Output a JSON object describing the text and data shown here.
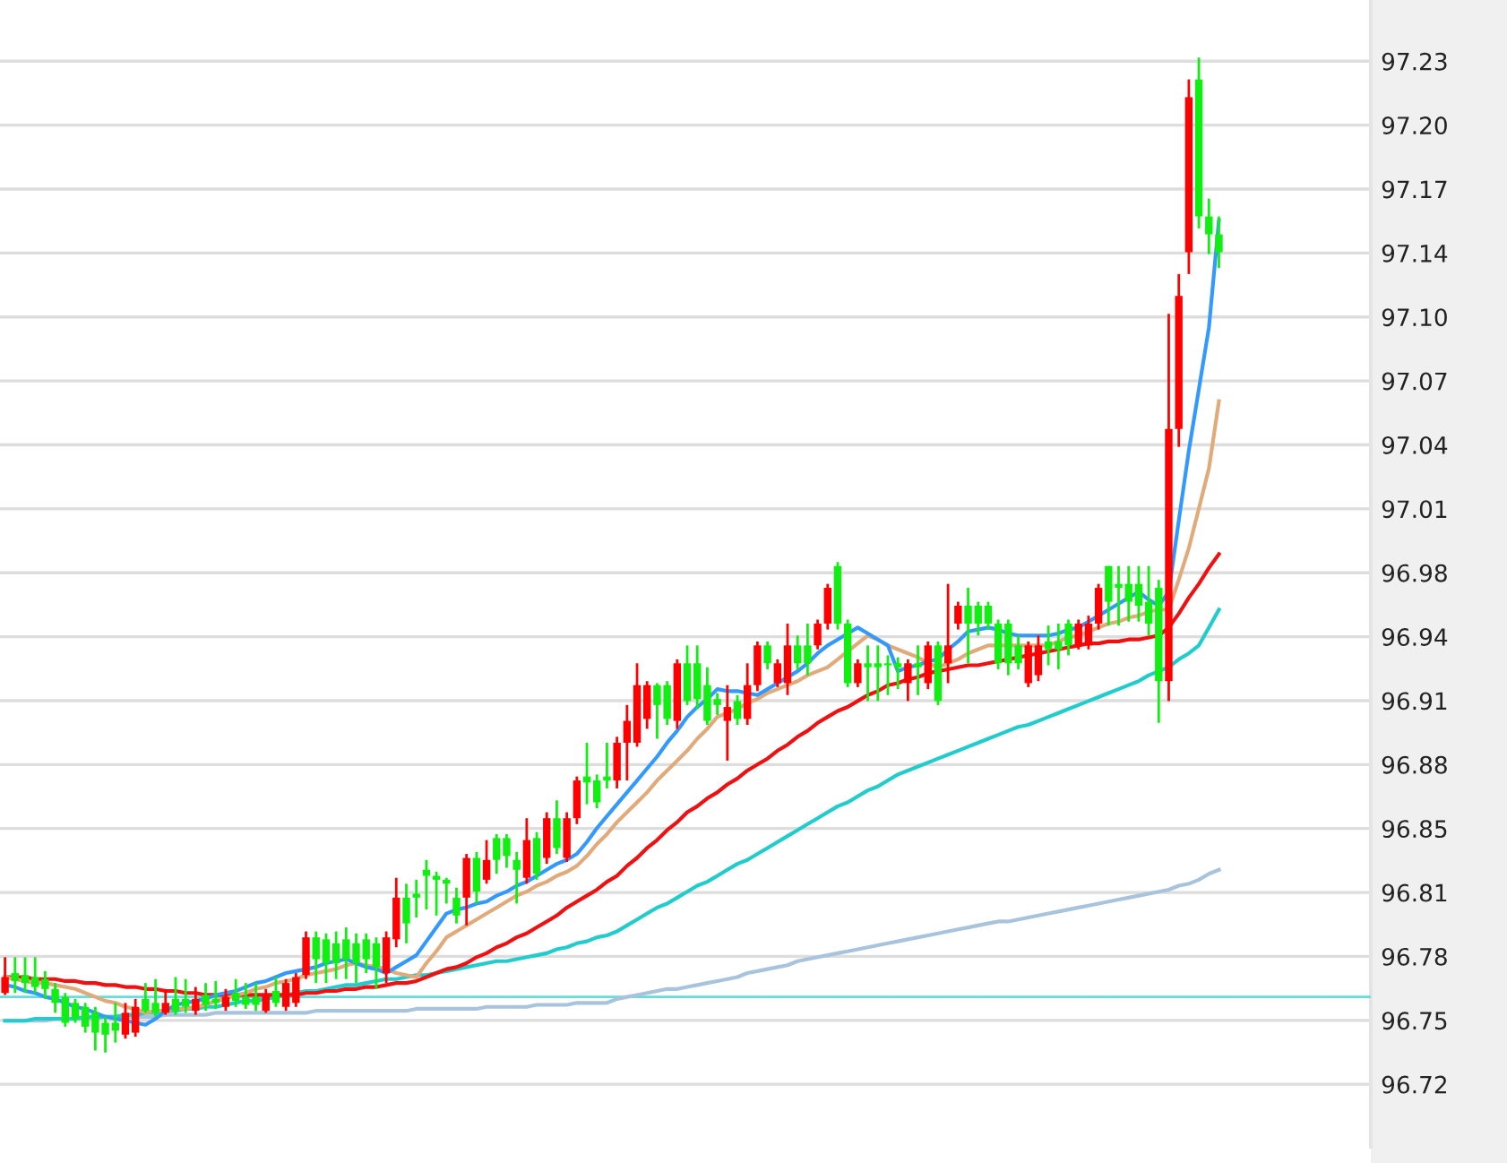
{
  "chart_data": {
    "type": "candlestick",
    "categories": [
      null,
      null,
      null,
      null,
      null,
      null,
      null,
      null,
      null,
      null,
      null,
      null,
      null,
      null,
      null,
      null,
      null,
      null,
      null,
      null,
      null,
      null,
      null,
      null,
      null,
      null,
      null,
      null,
      null,
      null,
      null,
      null,
      null,
      null,
      null,
      null,
      null,
      null,
      null,
      null,
      null,
      null,
      null,
      null,
      null,
      null,
      null,
      null,
      null,
      null,
      null,
      null,
      null,
      null,
      null,
      null,
      null,
      null,
      null,
      null,
      null,
      null,
      null,
      null,
      null,
      null,
      null,
      null,
      null,
      null,
      null,
      null,
      null,
      null,
      null,
      null,
      null,
      null,
      null,
      null,
      null,
      null,
      null,
      null,
      null,
      null,
      null,
      null,
      null,
      null,
      null,
      null,
      null,
      null,
      null,
      null,
      null,
      null,
      null,
      null,
      null,
      null,
      null,
      null,
      null,
      null,
      null,
      null,
      null,
      null,
      null,
      null,
      null,
      null,
      null,
      null,
      null,
      null,
      null,
      null,
      null,
      null
    ],
    "ylim": [
      96.6865,
      97.264
    ],
    "yticks": [
      {
        "value": 96.718,
        "label": "96.72"
      },
      {
        "value": 96.7502,
        "label": "96.75"
      },
      {
        "value": 96.7824,
        "label": "96.78"
      },
      {
        "value": 96.8146,
        "label": "96.81"
      },
      {
        "value": 96.8468,
        "label": "96.85"
      },
      {
        "value": 96.879,
        "label": "96.88"
      },
      {
        "value": 96.9112,
        "label": "96.91"
      },
      {
        "value": 96.9434,
        "label": "96.94"
      },
      {
        "value": 96.9756,
        "label": "96.98"
      },
      {
        "value": 97.0078,
        "label": "97.01"
      },
      {
        "value": 97.04,
        "label": "97.04"
      },
      {
        "value": 97.0722,
        "label": "97.07"
      },
      {
        "value": 97.1044,
        "label": "97.10"
      },
      {
        "value": 97.1366,
        "label": "97.14"
      },
      {
        "value": 97.1688,
        "label": "97.17"
      },
      {
        "value": 97.201,
        "label": "97.20"
      },
      {
        "value": 97.2332,
        "label": "97.23"
      }
    ],
    "grid": "y",
    "tick_labels": "y",
    "ref_lines": [
      {
        "axis": "y",
        "value": 96.762,
        "color": "#66dddd"
      }
    ],
    "colors": [
      "#ff0000",
      "#11ee11",
      "#11ee11",
      "#11ee11",
      "#11ee11",
      "#11ee11",
      "#11ee11",
      "#11ee11",
      "#11ee11",
      "#11ee11",
      "#11ee11",
      "#11ee11",
      "#ff0000",
      "#ff0000",
      "#11ee11",
      "#11ee11",
      "#ff0000",
      "#11ee11",
      "#11ee11",
      "#ff0000",
      "#11ee11",
      "#11ee11",
      "#ff0000",
      "#11ee11",
      "#11ee11",
      "#11ee11",
      "#ff0000",
      "#11ee11",
      "#ff0000",
      "#ff0000",
      "#ff0000",
      "#11ee11",
      "#11ee11",
      "#11ee11",
      "#11ee11",
      "#11ee11",
      "#11ee11",
      "#11ee11",
      "#ff0000",
      "#ff0000",
      "#11ee11",
      "#11ee11",
      "#11ee11",
      "#11ee11",
      "#11ee11",
      "#11ee11",
      "#ff0000",
      "#11ee11",
      "#ff0000",
      "#11ee11",
      "#11ee11",
      "#11ee11",
      "#ff0000",
      "#11ee11",
      "#ff0000",
      "#11ee11",
      "#ff0000",
      "#ff0000",
      "#11ee11",
      "#11ee11",
      "#11ee11",
      "#ff0000",
      "#ff0000",
      "#ff0000",
      "#ff0000",
      "#11ee11",
      "#11ee11",
      "#ff0000",
      "#11ee11",
      "#11ee11",
      "#11ee11",
      "#11ee11",
      "#ff0000",
      "#11ee11",
      "#ff0000",
      "#ff0000",
      "#11ee11",
      "#ff0000",
      "#ff0000",
      "#11ee11",
      "#11ee11",
      "#ff0000",
      "#ff0000",
      "#11ee11",
      "#11ee11",
      "#ff0000",
      "#11ee11",
      "#11ee11",
      "#11ee11",
      "#11ee11",
      "#ff0000",
      "#11ee11",
      "#ff0000",
      "#11ee11",
      "#ff0000",
      "#ff0000",
      "#11ee11",
      "#11ee11",
      "#11ee11",
      "#11ee11",
      "#11ee11",
      "#11ee11",
      "#ff0000",
      "#ff0000",
      "#11ee11",
      "#11ee11",
      "#11ee11",
      "#ff0000",
      "#ff0000",
      "#ff0000",
      "#11ee11",
      "#11ee11",
      "#11ee11",
      "#11ee11",
      "#11ee11",
      "#11ee11",
      "#ff0000",
      "#ff0000",
      "#ff0000",
      "#11ee11",
      "#11ee11",
      "#11ee11"
    ],
    "ohlc": [
      [
        96.764,
        96.782,
        96.763,
        96.772
      ],
      [
        96.774,
        96.782,
        96.764,
        96.77
      ],
      [
        96.773,
        96.782,
        96.764,
        96.769
      ],
      [
        96.772,
        96.782,
        96.764,
        96.767
      ],
      [
        96.771,
        96.775,
        96.761,
        96.766
      ],
      [
        96.766,
        96.769,
        96.754,
        96.759
      ],
      [
        96.762,
        96.764,
        96.747,
        96.749
      ],
      [
        96.759,
        96.761,
        96.749,
        96.751
      ],
      [
        96.757,
        96.759,
        96.744,
        96.747
      ],
      [
        96.754,
        96.757,
        96.735,
        96.744
      ],
      [
        96.749,
        96.752,
        96.734,
        96.743
      ],
      [
        96.749,
        96.759,
        96.739,
        96.745
      ],
      [
        96.743,
        96.759,
        96.741,
        96.754
      ],
      [
        96.744,
        96.761,
        96.742,
        96.757
      ],
      [
        96.761,
        96.769,
        96.754,
        96.755
      ],
      [
        96.759,
        96.771,
        96.752,
        96.754
      ],
      [
        96.754,
        96.766,
        96.753,
        96.759
      ],
      [
        96.761,
        96.772,
        96.753,
        96.755
      ],
      [
        96.761,
        96.771,
        96.754,
        96.757
      ],
      [
        96.755,
        96.767,
        96.753,
        96.761
      ],
      [
        96.763,
        96.769,
        96.755,
        96.758
      ],
      [
        96.761,
        96.77,
        96.756,
        96.759
      ],
      [
        96.757,
        96.766,
        96.755,
        96.762
      ],
      [
        96.764,
        96.771,
        96.757,
        96.76
      ],
      [
        96.762,
        96.769,
        96.756,
        96.758
      ],
      [
        96.762,
        96.769,
        96.755,
        96.758
      ],
      [
        96.755,
        96.766,
        96.754,
        96.763
      ],
      [
        96.765,
        96.772,
        96.757,
        96.759
      ],
      [
        96.757,
        96.771,
        96.755,
        96.769
      ],
      [
        96.759,
        96.774,
        96.757,
        96.772
      ],
      [
        96.773,
        96.795,
        96.771,
        96.792
      ],
      [
        96.792,
        96.795,
        96.769,
        96.781
      ],
      [
        96.791,
        96.794,
        96.769,
        96.779
      ],
      [
        96.789,
        96.795,
        96.771,
        96.779
      ],
      [
        96.791,
        96.797,
        96.771,
        96.781
      ],
      [
        96.789,
        96.794,
        96.769,
        96.779
      ],
      [
        96.791,
        96.794,
        96.774,
        96.781
      ],
      [
        96.789,
        96.792,
        96.766,
        96.777
      ],
      [
        96.774,
        96.795,
        96.769,
        96.792
      ],
      [
        96.791,
        96.822,
        96.787,
        96.812
      ],
      [
        96.812,
        96.819,
        96.789,
        96.799
      ],
      [
        96.814,
        96.821,
        96.802,
        96.812
      ],
      [
        96.826,
        96.831,
        96.806,
        96.823
      ],
      [
        96.823,
        96.825,
        96.803,
        96.821
      ],
      [
        96.821,
        96.822,
        96.809,
        96.819
      ],
      [
        96.812,
        96.817,
        96.799,
        96.803
      ],
      [
        96.812,
        96.834,
        96.798,
        96.832
      ],
      [
        96.832,
        96.835,
        96.809,
        96.815
      ],
      [
        96.821,
        96.841,
        96.819,
        96.831
      ],
      [
        96.842,
        96.844,
        96.824,
        96.831
      ],
      [
        96.842,
        96.844,
        96.827,
        96.833
      ],
      [
        96.831,
        96.835,
        96.809,
        96.826
      ],
      [
        96.822,
        96.852,
        96.819,
        96.841
      ],
      [
        96.842,
        96.845,
        96.821,
        96.824
      ],
      [
        96.832,
        96.855,
        96.829,
        96.852
      ],
      [
        96.852,
        96.861,
        96.834,
        96.837
      ],
      [
        96.832,
        96.855,
        96.83,
        96.852
      ],
      [
        96.852,
        96.873,
        96.849,
        96.871
      ],
      [
        96.873,
        96.89,
        96.859,
        96.87
      ],
      [
        96.871,
        96.874,
        96.857,
        96.86
      ],
      [
        96.873,
        96.89,
        96.867,
        96.871
      ],
      [
        96.871,
        96.893,
        96.867,
        96.89
      ],
      [
        96.89,
        96.909,
        96.871,
        96.901
      ],
      [
        96.89,
        96.93,
        96.888,
        96.919
      ],
      [
        96.902,
        96.921,
        96.897,
        96.919
      ],
      [
        96.919,
        96.92,
        96.892,
        96.909
      ],
      [
        96.919,
        96.921,
        96.899,
        96.902
      ],
      [
        96.901,
        96.932,
        96.897,
        96.93
      ],
      [
        96.93,
        96.939,
        96.909,
        96.911
      ],
      [
        96.93,
        96.939,
        96.907,
        96.912
      ],
      [
        96.919,
        96.928,
        96.899,
        96.901
      ],
      [
        96.912,
        96.915,
        96.904,
        96.909
      ],
      [
        96.901,
        96.919,
        96.881,
        96.908
      ],
      [
        96.911,
        96.914,
        96.899,
        96.902
      ],
      [
        96.902,
        96.93,
        96.899,
        96.919
      ],
      [
        96.919,
        96.941,
        96.916,
        96.939
      ],
      [
        96.939,
        96.941,
        96.927,
        96.93
      ],
      [
        96.92,
        96.932,
        96.918,
        96.93
      ],
      [
        96.92,
        96.95,
        96.914,
        96.939
      ],
      [
        96.939,
        96.944,
        96.927,
        96.93
      ],
      [
        96.939,
        96.95,
        96.924,
        96.93
      ],
      [
        96.939,
        96.952,
        96.937,
        96.95
      ],
      [
        96.95,
        96.97,
        96.947,
        96.968
      ],
      [
        96.979,
        96.981,
        96.947,
        96.95
      ],
      [
        96.95,
        96.952,
        96.918,
        96.92
      ],
      [
        96.92,
        96.932,
        96.918,
        96.93
      ],
      [
        96.93,
        96.939,
        96.911,
        96.928
      ],
      [
        96.93,
        96.939,
        96.911,
        96.928
      ],
      [
        96.93,
        96.934,
        96.914,
        96.929
      ],
      [
        96.93,
        96.933,
        96.917,
        96.928
      ],
      [
        96.92,
        96.932,
        96.911,
        96.93
      ],
      [
        96.93,
        96.939,
        96.914,
        96.928
      ],
      [
        96.92,
        96.941,
        96.917,
        96.939
      ],
      [
        96.939,
        96.941,
        96.909,
        96.911
      ],
      [
        96.93,
        96.97,
        96.92,
        96.939
      ],
      [
        96.95,
        96.961,
        96.947,
        96.959
      ],
      [
        96.959,
        96.968,
        96.93,
        96.95
      ],
      [
        96.959,
        96.961,
        96.944,
        96.95
      ],
      [
        96.959,
        96.961,
        96.947,
        96.95
      ],
      [
        96.95,
        96.952,
        96.927,
        96.93
      ],
      [
        96.95,
        96.952,
        96.924,
        96.93
      ],
      [
        96.939,
        96.944,
        96.927,
        96.93
      ],
      [
        96.92,
        96.941,
        96.918,
        96.939
      ],
      [
        96.924,
        96.944,
        96.921,
        96.939
      ],
      [
        96.941,
        96.949,
        96.929,
        96.937
      ],
      [
        96.941,
        96.95,
        96.927,
        96.937
      ],
      [
        96.95,
        96.952,
        96.934,
        96.939
      ],
      [
        96.939,
        96.952,
        96.937,
        96.95
      ],
      [
        96.939,
        96.954,
        96.937,
        96.95
      ],
      [
        96.95,
        96.97,
        96.947,
        96.968
      ],
      [
        96.979,
        96.979,
        96.949,
        96.961
      ],
      [
        96.97,
        96.979,
        96.949,
        96.968
      ],
      [
        96.97,
        96.979,
        96.951,
        96.961
      ],
      [
        96.97,
        96.979,
        96.951,
        96.959
      ],
      [
        96.961,
        96.979,
        96.944,
        96.95
      ],
      [
        96.968,
        96.972,
        96.9,
        96.921
      ],
      [
        96.921,
        97.106,
        96.911,
        97.048
      ],
      [
        97.048,
        97.126,
        97.039,
        97.115
      ],
      [
        97.137,
        97.224,
        97.126,
        97.215
      ],
      [
        97.224,
        97.235,
        97.149,
        97.155
      ],
      [
        97.155,
        97.164,
        97.136,
        97.146
      ],
      [
        97.146,
        97.155,
        97.129,
        97.137
      ]
    ],
    "series": [
      {
        "type": "line",
        "color": "#a8c4dc",
        "values": [
          96.75,
          96.75,
          96.75,
          96.75,
          96.75,
          96.751,
          96.751,
          96.751,
          96.751,
          96.751,
          96.752,
          96.752,
          96.752,
          96.752,
          96.752,
          96.752,
          96.753,
          96.753,
          96.753,
          96.753,
          96.753,
          96.754,
          96.754,
          96.754,
          96.754,
          96.754,
          96.754,
          96.754,
          96.754,
          96.754,
          96.754,
          96.755,
          96.755,
          96.755,
          96.755,
          96.755,
          96.755,
          96.755,
          96.755,
          96.755,
          96.755,
          96.756,
          96.756,
          96.756,
          96.756,
          96.756,
          96.756,
          96.756,
          96.757,
          96.757,
          96.757,
          96.757,
          96.757,
          96.758,
          96.758,
          96.758,
          96.758,
          96.759,
          96.759,
          96.759,
          96.759,
          96.761,
          96.762,
          96.763,
          96.764,
          96.765,
          96.766,
          96.766,
          96.767,
          96.768,
          96.769,
          96.77,
          96.771,
          96.772,
          96.774,
          96.775,
          96.776,
          96.777,
          96.778,
          96.78,
          96.781,
          96.782,
          96.783,
          96.784,
          96.785,
          96.786,
          96.787,
          96.788,
          96.789,
          96.79,
          96.791,
          96.792,
          96.793,
          96.794,
          96.795,
          96.796,
          96.797,
          96.798,
          96.799,
          96.8,
          96.8,
          96.801,
          96.802,
          96.803,
          96.804,
          96.805,
          96.806,
          96.807,
          96.808,
          96.809,
          96.81,
          96.811,
          96.812,
          96.813,
          96.814,
          96.815,
          96.816,
          96.818,
          96.819,
          96.821,
          96.824,
          96.826
        ]
      },
      {
        "type": "line",
        "color": "#22cccc",
        "values": [
          96.75,
          96.75,
          96.75,
          96.751,
          96.751,
          96.751,
          96.751,
          96.751,
          96.752,
          96.752,
          96.752,
          96.752,
          96.753,
          96.753,
          96.754,
          96.754,
          96.755,
          96.755,
          96.756,
          96.756,
          96.757,
          96.757,
          96.758,
          96.759,
          96.76,
          96.76,
          96.761,
          96.762,
          96.763,
          96.764,
          96.765,
          96.765,
          96.766,
          96.767,
          96.768,
          96.768,
          96.769,
          96.77,
          96.771,
          96.771,
          96.772,
          96.773,
          96.773,
          96.774,
          96.775,
          96.776,
          96.777,
          96.778,
          96.779,
          96.78,
          96.78,
          96.781,
          96.782,
          96.783,
          96.784,
          96.786,
          96.787,
          96.789,
          96.79,
          96.792,
          96.793,
          96.795,
          96.798,
          96.801,
          96.804,
          96.807,
          96.809,
          96.812,
          96.815,
          96.818,
          96.82,
          96.823,
          96.826,
          96.829,
          96.831,
          96.834,
          96.837,
          96.84,
          96.843,
          96.846,
          96.849,
          96.852,
          96.855,
          96.858,
          96.86,
          96.863,
          96.866,
          96.868,
          96.871,
          96.874,
          96.876,
          96.878,
          96.88,
          96.882,
          96.884,
          96.886,
          96.888,
          96.89,
          96.892,
          96.894,
          96.896,
          96.898,
          96.899,
          96.901,
          96.903,
          96.905,
          96.907,
          96.909,
          96.911,
          96.913,
          96.915,
          96.917,
          96.919,
          96.921,
          96.924,
          96.926,
          96.928,
          96.932,
          96.935,
          96.939,
          96.948,
          96.957
        ]
      },
      {
        "type": "line",
        "color": "#ee1111",
        "values": [
          96.772,
          96.772,
          96.772,
          96.771,
          96.771,
          96.771,
          96.77,
          96.77,
          96.769,
          96.769,
          96.768,
          96.768,
          96.767,
          96.767,
          96.766,
          96.766,
          96.765,
          96.765,
          96.764,
          96.764,
          96.763,
          96.763,
          96.763,
          96.763,
          96.763,
          96.763,
          96.763,
          96.763,
          96.763,
          96.763,
          96.764,
          96.764,
          96.765,
          96.765,
          96.766,
          96.766,
          96.767,
          96.767,
          96.768,
          96.769,
          96.769,
          96.77,
          96.772,
          96.774,
          96.776,
          96.777,
          96.779,
          96.782,
          96.784,
          96.787,
          96.789,
          96.792,
          96.794,
          96.797,
          96.8,
          96.803,
          96.807,
          96.81,
          96.813,
          96.816,
          96.82,
          96.823,
          96.828,
          96.832,
          96.837,
          96.841,
          96.846,
          96.85,
          96.855,
          96.858,
          96.862,
          96.865,
          96.869,
          96.872,
          96.876,
          96.879,
          96.882,
          96.886,
          96.889,
          96.893,
          96.896,
          96.9,
          96.903,
          96.906,
          96.908,
          96.911,
          96.914,
          96.916,
          96.919,
          96.92,
          96.922,
          96.923,
          96.925,
          96.926,
          96.927,
          96.928,
          96.929,
          96.929,
          96.93,
          96.931,
          96.932,
          96.933,
          96.934,
          96.935,
          96.936,
          96.937,
          96.938,
          96.939,
          96.94,
          96.94,
          96.941,
          96.941,
          96.942,
          96.942,
          96.943,
          96.944,
          96.948,
          96.955,
          96.963,
          96.97,
          96.978,
          96.985
        ]
      },
      {
        "type": "line",
        "color": "#e0aa7a",
        "values": [
          96.772,
          96.771,
          96.77,
          96.769,
          96.769,
          96.768,
          96.767,
          96.766,
          96.764,
          96.762,
          96.76,
          96.759,
          96.757,
          96.756,
          96.754,
          96.755,
          96.755,
          96.756,
          96.756,
          96.757,
          96.758,
          96.76,
          96.761,
          96.763,
          96.764,
          96.766,
          96.767,
          96.769,
          96.77,
          96.771,
          96.773,
          96.774,
          96.775,
          96.776,
          96.778,
          96.779,
          96.778,
          96.777,
          96.776,
          96.774,
          96.773,
          96.772,
          96.779,
          96.785,
          96.792,
          96.795,
          96.798,
          96.801,
          96.804,
          96.807,
          96.81,
          96.813,
          96.815,
          96.818,
          96.82,
          96.823,
          96.825,
          96.828,
          96.833,
          96.839,
          96.844,
          96.85,
          96.855,
          96.86,
          96.865,
          96.871,
          96.876,
          96.881,
          96.886,
          96.892,
          96.897,
          96.903,
          96.905,
          96.907,
          96.91,
          96.912,
          96.915,
          96.917,
          96.919,
          96.921,
          96.924,
          96.926,
          96.928,
          96.932,
          96.936,
          96.94,
          96.944,
          96.942,
          96.939,
          96.937,
          96.935,
          96.933,
          96.93,
          96.928,
          96.93,
          96.932,
          96.935,
          96.937,
          96.939,
          96.939,
          96.939,
          96.939,
          96.939,
          96.939,
          96.939,
          96.941,
          96.943,
          96.944,
          96.946,
          96.948,
          96.95,
          96.951,
          96.953,
          96.954,
          96.956,
          96.957,
          96.957,
          96.972,
          96.988,
          97.008,
          97.028,
          97.062
        ]
      },
      {
        "type": "line",
        "color": "#3399ff",
        "values": [
          96.768,
          96.767,
          96.765,
          96.764,
          96.762,
          96.761,
          96.759,
          96.757,
          96.756,
          96.754,
          96.752,
          96.751,
          96.75,
          96.749,
          96.748,
          96.751,
          96.755,
          96.758,
          96.759,
          96.76,
          96.761,
          96.763,
          96.764,
          96.765,
          96.767,
          96.769,
          96.77,
          96.772,
          96.774,
          96.775,
          96.776,
          96.777,
          96.779,
          96.78,
          96.781,
          96.779,
          96.777,
          96.776,
          96.774,
          96.777,
          96.78,
          96.783,
          96.79,
          96.797,
          96.804,
          96.806,
          96.807,
          96.809,
          96.81,
          96.813,
          96.815,
          96.818,
          96.82,
          96.823,
          96.826,
          96.829,
          96.831,
          96.834,
          96.84,
          96.847,
          96.853,
          96.859,
          96.865,
          96.871,
          96.877,
          96.883,
          96.89,
          96.896,
          96.903,
          96.908,
          96.912,
          96.917,
          96.916,
          96.916,
          96.915,
          96.914,
          96.917,
          96.92,
          96.923,
          96.926,
          96.93,
          96.935,
          96.939,
          96.942,
          96.945,
          96.948,
          96.945,
          96.942,
          96.939,
          96.926,
          96.928,
          96.929,
          96.931,
          96.932,
          96.937,
          96.941,
          96.946,
          96.947,
          96.948,
          96.947,
          96.945,
          96.944,
          96.944,
          96.944,
          96.944,
          96.945,
          96.947,
          96.948,
          96.951,
          96.954,
          96.957,
          96.96,
          96.963,
          96.966,
          96.962,
          96.959,
          96.966,
          97.002,
          97.037,
          97.068,
          97.099,
          97.153
        ]
      }
    ]
  }
}
